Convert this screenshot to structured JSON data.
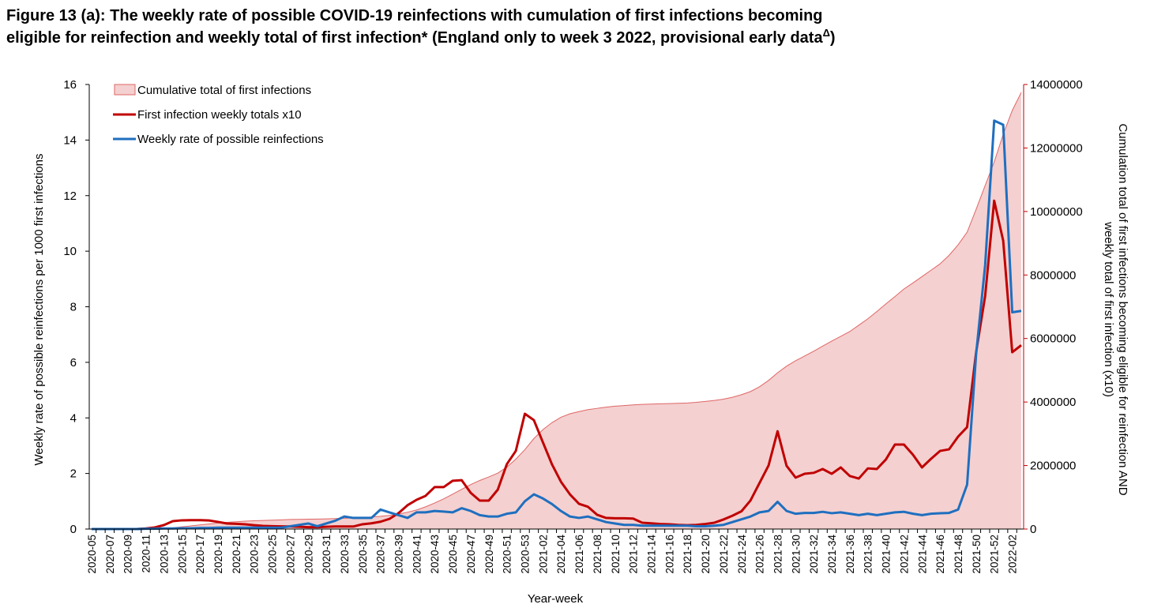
{
  "chart_data": {
    "type": "line",
    "title_lines": [
      "Figure 13 (a): The weekly rate of possible COVID-19 reinfections with cumulation of first infections becoming",
      "eligible for reinfection and weekly total of first infection* (England only to week 3 2022, provisional early data"
    ],
    "title_superscript": "Δ",
    "title_end": ")",
    "x_label": "Year-week",
    "y_label": "Weekly rate of  possible  reinfections per 1000 first infections",
    "y2_label_lines": [
      "Cumulation total of first infections becoming eligible for reinfection AND",
      "weekly total of first infection (x10)"
    ],
    "categories": [
      "2020-05",
      null,
      "2020-07",
      null,
      "2020-09",
      null,
      "2020-11",
      null,
      "2020-13",
      null,
      "2020-15",
      null,
      "2020-17",
      null,
      "2020-19",
      null,
      "2020-21",
      null,
      "2020-23",
      null,
      "2020-25",
      null,
      "2020-27",
      null,
      "2020-29",
      null,
      "2020-31",
      null,
      "2020-33",
      null,
      "2020-35",
      null,
      "2020-37",
      null,
      "2020-39",
      null,
      "2020-41",
      null,
      "2020-43",
      null,
      "2020-45",
      null,
      "2020-47",
      null,
      "2020-49",
      null,
      "2020-51",
      null,
      "2020-53",
      null,
      "2021-02",
      null,
      "2021-04",
      null,
      "2021-06",
      null,
      "2021-08",
      null,
      "2021-10",
      null,
      "2021-12",
      null,
      "2021-14",
      null,
      "2021-16",
      null,
      "2021-18",
      null,
      "2021-20",
      null,
      "2021-22",
      null,
      "2021-24",
      null,
      "2021-26",
      null,
      "2021-28",
      null,
      "2021-30",
      null,
      "2021-32",
      null,
      "2021-34",
      null,
      "2021-36",
      null,
      "2021-38",
      null,
      "2021-40",
      null,
      "2021-42",
      null,
      "2021-44",
      null,
      "2021-46",
      null,
      "2021-48",
      null,
      "2021-50",
      null,
      "2021-52",
      null,
      "2022-02",
      null
    ],
    "series": [
      {
        "name": "Cumulative total of first infections",
        "kind": "area",
        "axis": "y2",
        "color": "#f4d0d0",
        "line_color": "#e06666",
        "values": [
          0,
          0,
          0,
          0,
          0,
          0,
          5000,
          10000,
          20000,
          40000,
          70000,
          100000,
          130000,
          160000,
          190000,
          210000,
          230000,
          250000,
          260000,
          270000,
          280000,
          290000,
          300000,
          305000,
          310000,
          315000,
          320000,
          330000,
          340000,
          350000,
          360000,
          380000,
          400000,
          430000,
          470000,
          530000,
          600000,
          700000,
          820000,
          950000,
          1100000,
          1250000,
          1400000,
          1530000,
          1640000,
          1760000,
          1950000,
          2200000,
          2500000,
          2850000,
          3130000,
          3350000,
          3520000,
          3630000,
          3700000,
          3760000,
          3800000,
          3840000,
          3870000,
          3890000,
          3910000,
          3925000,
          3935000,
          3945000,
          3950000,
          3960000,
          3970000,
          3990000,
          4020000,
          4050000,
          4090000,
          4150000,
          4230000,
          4330000,
          4480000,
          4680000,
          4920000,
          5130000,
          5300000,
          5450000,
          5600000,
          5760000,
          5920000,
          6070000,
          6220000,
          6420000,
          6620000,
          6850000,
          7090000,
          7320000,
          7560000,
          7750000,
          7950000,
          8150000,
          8350000,
          8620000,
          8950000,
          9350000,
          10070000,
          10820000,
          11560000,
          12430000,
          13180000,
          13750000
        ]
      },
      {
        "name": "First infection weekly totals x10",
        "kind": "line",
        "axis": "y2",
        "color": "#c00000",
        "values": [
          0,
          0,
          0,
          0,
          0,
          0,
          20000,
          50000,
          124000,
          250000,
          275000,
          280000,
          280000,
          270000,
          225000,
          175000,
          165000,
          150000,
          120000,
          100000,
          90000,
          85000,
          80000,
          70000,
          60000,
          60000,
          70000,
          80000,
          80000,
          80000,
          150000,
          180000,
          230000,
          320000,
          500000,
          750000,
          920000,
          1045000,
          1320000,
          1320000,
          1520000,
          1540000,
          1140000,
          895000,
          895000,
          1240000,
          2040000,
          2460000,
          3630000,
          3430000,
          2730000,
          2040000,
          1490000,
          1090000,
          795000,
          700000,
          450000,
          350000,
          340000,
          340000,
          330000,
          200000,
          180000,
          160000,
          150000,
          130000,
          120000,
          130000,
          160000,
          200000,
          300000,
          420000,
          560000,
          900000,
          1450000,
          2000000,
          3080000,
          1990000,
          1620000,
          1740000,
          1770000,
          1890000,
          1740000,
          1940000,
          1670000,
          1590000,
          1910000,
          1890000,
          2190000,
          2660000,
          2660000,
          2340000,
          1940000,
          2210000,
          2460000,
          2510000,
          2910000,
          3210000,
          5570000,
          7340000,
          10340000,
          9080000,
          5570000,
          5790000
        ]
      },
      {
        "name": "Weekly rate of possible reinfections",
        "kind": "line",
        "axis": "y",
        "color": "#1f6fbf",
        "values": [
          0,
          0,
          0,
          0,
          0,
          0,
          0.01,
          0.01,
          0.02,
          0.02,
          0.03,
          0.03,
          0.04,
          0.04,
          0.05,
          0.05,
          0.05,
          0.05,
          0.05,
          0.05,
          0.05,
          0.05,
          0.1,
          0.15,
          0.2,
          0.1,
          0.2,
          0.3,
          0.45,
          0.4,
          0.4,
          0.4,
          0.7,
          0.6,
          0.5,
          0.4,
          0.6,
          0.6,
          0.65,
          0.63,
          0.6,
          0.75,
          0.65,
          0.5,
          0.45,
          0.45,
          0.55,
          0.6,
          1.0,
          1.25,
          1.1,
          0.9,
          0.65,
          0.45,
          0.4,
          0.45,
          0.35,
          0.25,
          0.2,
          0.15,
          0.15,
          0.12,
          0.12,
          0.12,
          0.12,
          0.12,
          0.12,
          0.1,
          0.1,
          0.12,
          0.15,
          0.25,
          0.35,
          0.45,
          0.6,
          0.65,
          0.98,
          0.65,
          0.55,
          0.58,
          0.58,
          0.62,
          0.57,
          0.6,
          0.55,
          0.5,
          0.55,
          0.5,
          0.55,
          0.6,
          0.62,
          0.55,
          0.5,
          0.55,
          0.57,
          0.58,
          0.7,
          1.6,
          6.3,
          9.5,
          14.7,
          14.55,
          7.8,
          7.85
        ]
      }
    ],
    "ylim": [
      0,
      16
    ],
    "yticks": [
      0,
      2,
      4,
      6,
      8,
      10,
      12,
      14,
      16
    ],
    "y2lim": [
      0,
      14000000
    ],
    "y2ticks": [
      0,
      2000000,
      4000000,
      6000000,
      8000000,
      10000000,
      12000000,
      14000000
    ],
    "y2_color": "#c00000",
    "legend": "top-left",
    "grid": false
  }
}
